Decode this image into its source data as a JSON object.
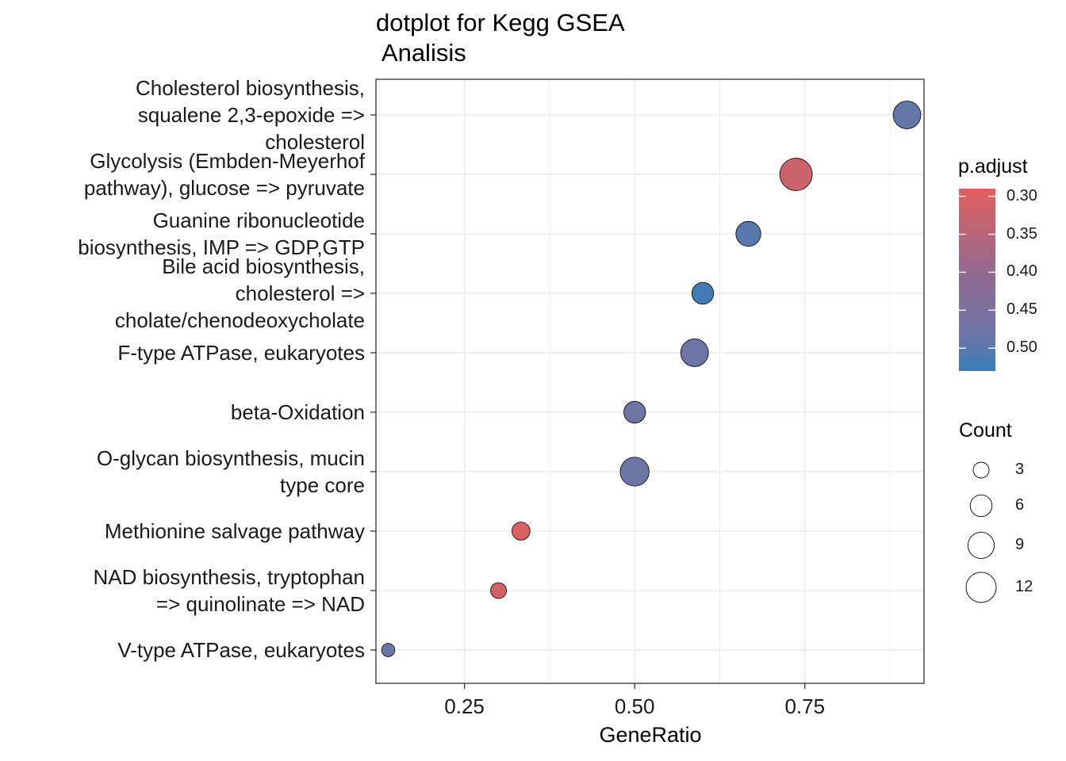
{
  "chart_data": {
    "type": "scatter",
    "title": "dotplot for Kegg GSEA\n Analisis",
    "xlabel": "GeneRatio",
    "ylabel": "",
    "xlim": [
      0.12,
      0.925
    ],
    "x_ticks": [
      0.25,
      0.5,
      0.75
    ],
    "x_tick_labels": [
      "0.25",
      "0.50",
      "0.75"
    ],
    "grid": true,
    "categories": [
      "Cholesterol biosynthesis,\nsqualene 2,3-epoxide =>\ncholesterol",
      "Glycolysis (Embden-Meyerhof\npathway), glucose => pyruvate",
      "Guanine ribonucleotide\nbiosynthesis, IMP => GDP,GTP",
      "Bile acid biosynthesis,\ncholesterol =>\ncholate/chenodeoxycholate",
      "F-type ATPase, eukaryotes",
      "beta-Oxidation",
      "O-glycan biosynthesis, mucin\ntype core",
      "Methionine salvage pathway",
      "NAD biosynthesis, tryptophan\n=> quinolinate => NAD",
      "V-type ATPase, eukaryotes"
    ],
    "points": [
      {
        "gene_ratio": 0.9,
        "count": 10,
        "p_adjust": 0.49
      },
      {
        "gene_ratio": 0.737,
        "count": 14,
        "p_adjust": 0.32
      },
      {
        "gene_ratio": 0.667,
        "count": 8,
        "p_adjust": 0.5
      },
      {
        "gene_ratio": 0.6,
        "count": 6,
        "p_adjust": 0.52
      },
      {
        "gene_ratio": 0.588,
        "count": 10,
        "p_adjust": 0.48
      },
      {
        "gene_ratio": 0.5,
        "count": 6,
        "p_adjust": 0.48
      },
      {
        "gene_ratio": 0.5,
        "count": 11,
        "p_adjust": 0.48
      },
      {
        "gene_ratio": 0.333,
        "count": 4,
        "p_adjust": 0.3
      },
      {
        "gene_ratio": 0.3,
        "count": 3,
        "p_adjust": 0.31
      },
      {
        "gene_ratio": 0.138,
        "count": 2,
        "p_adjust": 0.48
      }
    ],
    "legend_color": {
      "title": "p.adjust",
      "ticks": [
        "0.30",
        "0.35",
        "0.40",
        "0.45",
        "0.50"
      ],
      "range": [
        0.29,
        0.53
      ],
      "low_color": "#e0605e",
      "high_color": "#377eb8",
      "placement": "right"
    },
    "legend_size": {
      "title": "Count",
      "ticks": [
        "3",
        "6",
        "9",
        "12"
      ],
      "placement": "right"
    }
  }
}
